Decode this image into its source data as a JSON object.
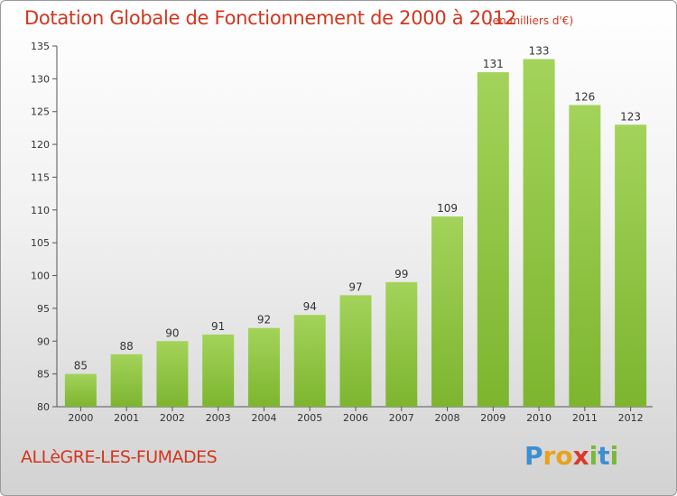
{
  "header": {
    "title": "Dotation Globale de Fonctionnement de 2000 à 2012",
    "unit": "(en milliers d'€)"
  },
  "footer": {
    "commune": "ALLèGRE-LES-FUMADES",
    "logo_letters": [
      "P",
      "r",
      "o",
      "x",
      "i",
      "t",
      "i"
    ],
    "logo_colors": [
      "#3c8fd0",
      "#e9a21c",
      "#e9a21c",
      "#d93a2a",
      "#7ab83a",
      "#3c8fd0",
      "#7ab83a"
    ]
  },
  "chart_data": {
    "type": "bar",
    "title": "Dotation Globale de Fonctionnement de 2000 à 2012",
    "categories": [
      "2000",
      "2001",
      "2002",
      "2003",
      "2004",
      "2005",
      "2006",
      "2007",
      "2008",
      "2009",
      "2010",
      "2011",
      "2012"
    ],
    "values": [
      85,
      88,
      90,
      91,
      92,
      94,
      97,
      99,
      109,
      131,
      133,
      126,
      123
    ],
    "ylim": [
      80,
      135
    ],
    "yticks": [
      80,
      85,
      90,
      95,
      100,
      105,
      110,
      115,
      120,
      125,
      130,
      135
    ],
    "grid": false,
    "bar_color": "#7db52f",
    "bar_color_light": "#a3d35a"
  }
}
